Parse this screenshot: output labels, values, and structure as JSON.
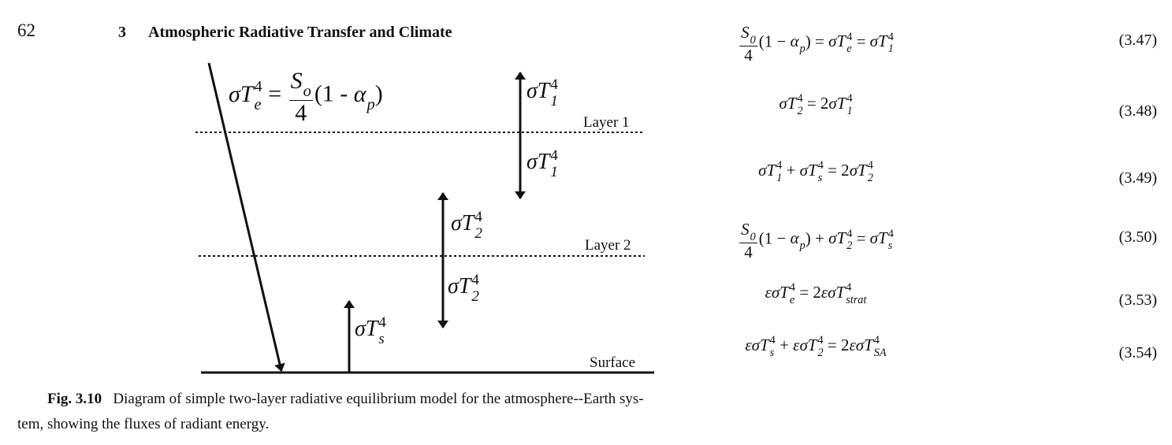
{
  "header": {
    "page_number": "62",
    "chapter_number": "3",
    "chapter_title": "Atmospheric Radiative Transfer and Climate"
  },
  "figure": {
    "top_label": [
      {
        "base": "σT",
        "sub": "e",
        "sup": "4"
      },
      " = ",
      {
        "frac_num": [
          {
            "base": "S",
            "sub": "o"
          }
        ],
        "frac_den": "4"
      },
      "(1 - ",
      {
        "base": "α",
        "sub": "p"
      },
      ")"
    ],
    "layer_labels": [
      "Layer 1",
      "Layer 2",
      "Surface"
    ],
    "flux_labels": [
      [
        {
          "base": "σT",
          "sub": "1",
          "sup": "4"
        }
      ],
      [
        {
          "base": "σT",
          "sub": "1",
          "sup": "4"
        }
      ],
      [
        {
          "base": "σT",
          "sub": "2",
          "sup": "4"
        }
      ],
      [
        {
          "base": "σT",
          "sub": "2",
          "sup": "4"
        }
      ],
      [
        {
          "base": "σT",
          "sub": "s",
          "sup": "4"
        }
      ]
    ]
  },
  "equations": [
    {
      "tokens": [
        {
          "frac_num": [
            {
              "base": "S",
              "sub": "0"
            }
          ],
          "frac_den": "4"
        },
        "(1 − ",
        {
          "base": "α",
          "sub": "p"
        },
        ") = ",
        {
          "base": "σT",
          "sub": "e",
          "sup": "4"
        },
        " = ",
        {
          "base": "σT",
          "sub": "1",
          "sup": "4"
        }
      ],
      "number": "(3.47)"
    },
    {
      "tokens": [
        {
          "base": "σT",
          "sub": "2",
          "sup": "4"
        },
        " = 2",
        {
          "base": "σT",
          "sub": "1",
          "sup": "4"
        }
      ],
      "number": "(3.48)"
    },
    {
      "tokens": [
        {
          "base": "σT",
          "sub": "1",
          "sup": "4"
        },
        " + ",
        {
          "base": "σT",
          "sub": "s",
          "sup": "4"
        },
        " = 2",
        {
          "base": "σT",
          "sub": "2",
          "sup": "4"
        }
      ],
      "number": "(3.49)"
    },
    {
      "tokens": [
        {
          "frac_num": [
            {
              "base": "S",
              "sub": "0"
            }
          ],
          "frac_den": "4"
        },
        "(1 − ",
        {
          "base": "α",
          "sub": "p"
        },
        ") + ",
        {
          "base": "σT",
          "sub": "2",
          "sup": "4"
        },
        " = ",
        {
          "base": "σT",
          "sub": "s",
          "sup": "4"
        }
      ],
      "number": "(3.50)"
    },
    {
      "tokens": [
        {
          "base": "εσT",
          "sub": "e",
          "sup": "4"
        },
        " = 2",
        {
          "base": "εσT",
          "sub": "strat",
          "sup": "4"
        }
      ],
      "number": "(3.53)"
    },
    {
      "tokens": [
        {
          "base": "εσT",
          "sub": "s",
          "sup": "4"
        },
        " + ",
        {
          "base": "εσT",
          "sub": "2",
          "sup": "4"
        },
        " = 2",
        {
          "base": "εσT",
          "sub": "SA",
          "sup": "4"
        }
      ],
      "number": "(3.54)"
    }
  ],
  "caption": {
    "label": "Fig. 3.10",
    "lines": [
      "Diagram of simple two-layer radiative equilibrium model for the atmosphere--Earth sys-",
      "tem, showing the fluxes of radiant energy."
    ]
  }
}
